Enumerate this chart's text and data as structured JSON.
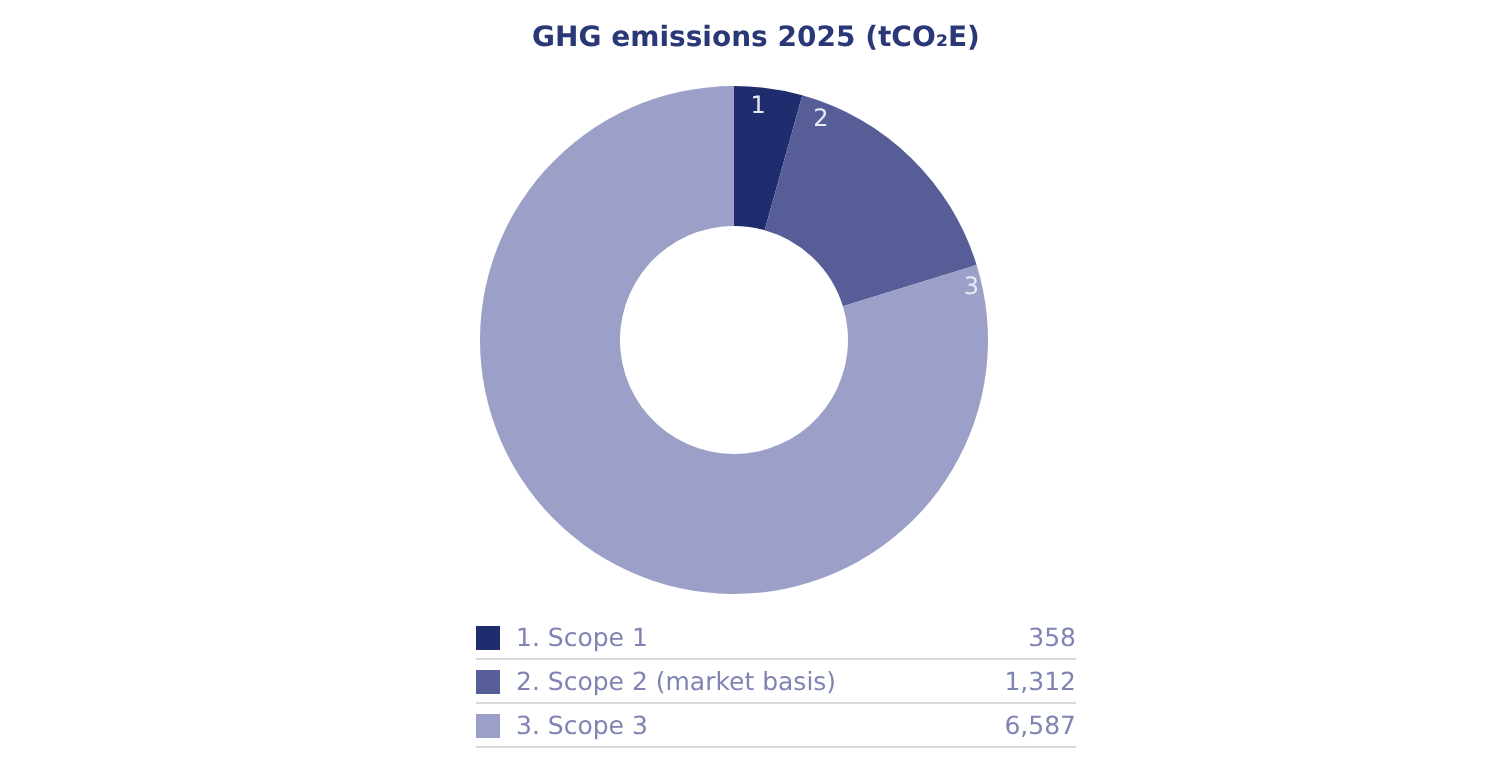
{
  "chart_data": {
    "type": "donut",
    "title": "GHG emissions 2025 (tCO₂E)",
    "categories": [
      "1. Scope 1",
      "2. Scope 2 (market basis)",
      "3. Scope 3"
    ],
    "values": [
      358,
      1312,
      6587
    ],
    "value_labels": [
      "358",
      "1,312",
      "6,587"
    ],
    "colors": [
      "#1f2d6e",
      "#575d96",
      "#9c9fc7"
    ],
    "annotations": [
      {
        "text": "1",
        "x": "1. Scope 1"
      },
      {
        "text": "2",
        "x": "2. Scope 2 (market basis)"
      },
      {
        "text": "3",
        "x": "3. Scope 3"
      }
    ],
    "legend": "bottom"
  }
}
